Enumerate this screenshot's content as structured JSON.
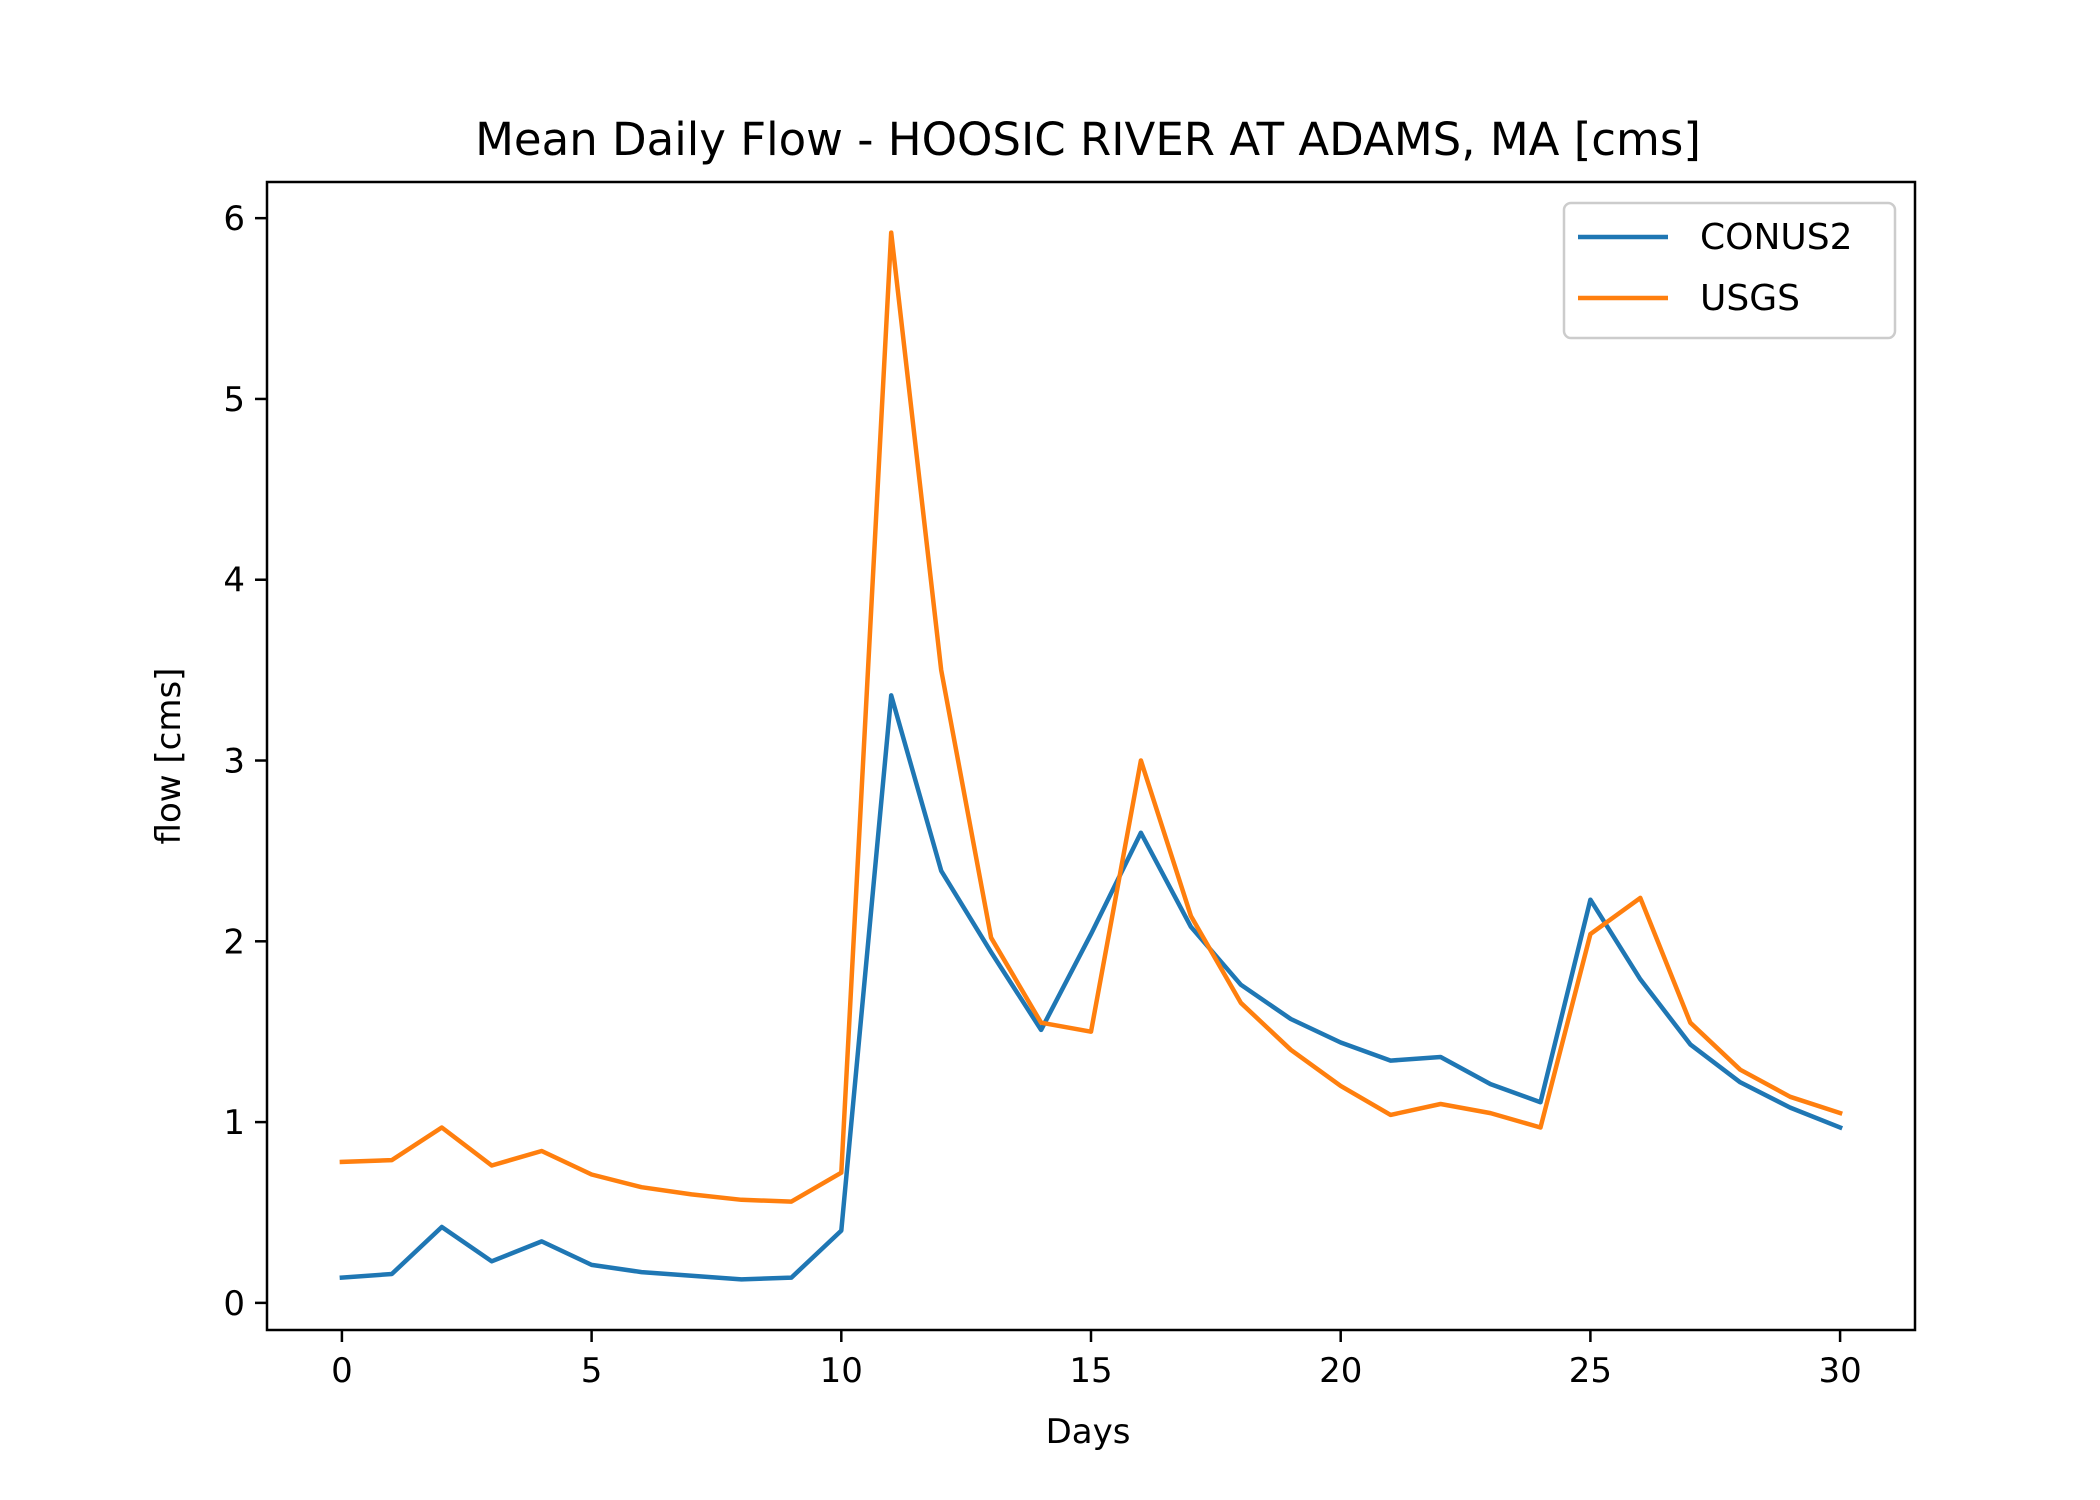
{
  "chart_data": {
    "type": "line",
    "title": "Mean Daily Flow - HOOSIC RIVER AT ADAMS, MA [cms]",
    "xlabel": "Days",
    "ylabel": "flow [cms]",
    "xlim": [
      -1.5,
      31.5
    ],
    "ylim": [
      -0.15,
      6.2
    ],
    "xticks": [
      0,
      5,
      10,
      15,
      20,
      25,
      30
    ],
    "yticks": [
      0,
      1,
      2,
      3,
      4,
      5,
      6
    ],
    "grid": false,
    "legend_position": "top-right",
    "x": [
      0,
      1,
      2,
      3,
      4,
      5,
      6,
      7,
      8,
      9,
      10,
      11,
      12,
      13,
      14,
      15,
      16,
      17,
      18,
      19,
      20,
      21,
      22,
      23,
      24,
      25,
      26,
      27,
      28,
      29,
      30
    ],
    "series": [
      {
        "name": "CONUS2",
        "color": "#1f77b4",
        "values": [
          0.14,
          0.16,
          0.42,
          0.23,
          0.34,
          0.21,
          0.17,
          0.15,
          0.13,
          0.14,
          0.4,
          3.36,
          2.39,
          1.94,
          1.51,
          2.04,
          2.6,
          2.08,
          1.76,
          1.57,
          1.44,
          1.34,
          1.36,
          1.21,
          1.11,
          2.23,
          1.79,
          1.43,
          1.22,
          1.08,
          0.97
        ]
      },
      {
        "name": "USGS",
        "color": "#ff7f0e",
        "values": [
          0.78,
          0.79,
          0.97,
          0.76,
          0.84,
          0.71,
          0.64,
          0.6,
          0.57,
          0.56,
          0.72,
          5.92,
          3.5,
          2.02,
          1.55,
          1.5,
          3.0,
          2.14,
          1.66,
          1.4,
          1.2,
          1.04,
          1.1,
          1.05,
          0.97,
          2.04,
          2.24,
          1.55,
          1.29,
          1.14,
          1.05
        ]
      }
    ]
  }
}
